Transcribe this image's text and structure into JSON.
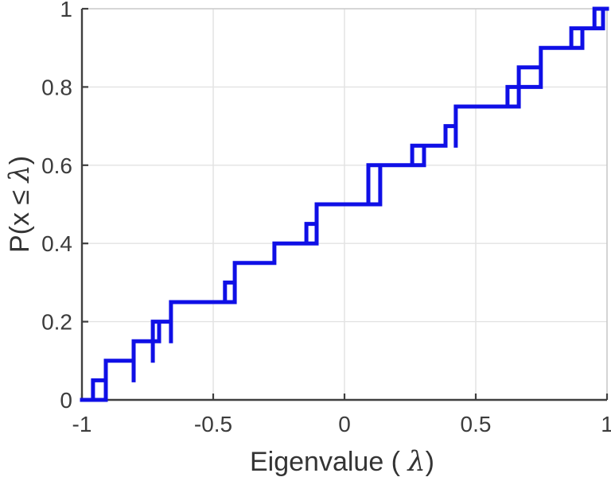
{
  "figure": {
    "background": "#ffffff",
    "kind": "MATLAB-style empirical CDF plot"
  },
  "chart_data": {
    "type": "step",
    "subtype": "ecdf-stairs",
    "title": "",
    "xlabel": {
      "pre": "Eigenvalue ( ",
      "sym": "λ",
      "post": ")"
    },
    "ylabel": {
      "pre": "P(x ",
      "mid": "≤ ",
      "sym": "λ",
      "post": ")"
    },
    "xlim": [
      -1,
      1
    ],
    "ylim": [
      0,
      1
    ],
    "xticks": {
      "values": [
        -1,
        -0.5,
        0,
        0.5,
        1
      ],
      "labels": [
        "-1",
        "-0.5",
        "0",
        "0.5",
        "1"
      ]
    },
    "yticks": {
      "values": [
        0,
        0.2,
        0.4,
        0.6,
        0.8,
        1
      ],
      "labels": [
        "0",
        "0.2",
        "0.4",
        "0.6",
        "0.8",
        "1"
      ]
    },
    "grid": true,
    "legend": null,
    "line_color": "#0f0fe6",
    "line_width": 5,
    "axis_color": "#3f3f3f",
    "minor_border_color": "#c9c9c9",
    "grid_color": "#e2e2e2",
    "tick_length": 8,
    "n_points": 20,
    "step_size": 0.05,
    "eigenvalues_approx": [
      -0.93,
      -0.86,
      -0.77,
      -0.7,
      -0.66,
      -0.44,
      -0.42,
      -0.27,
      -0.13,
      -0.11,
      0.11,
      0.11,
      0.28,
      0.4,
      0.42,
      0.64,
      0.71,
      0.75,
      0.89,
      0.97
    ],
    "steps": {
      "horizontals": [
        {
          "y": 0.0,
          "x1": -1.0,
          "x2": -0.909
        },
        {
          "y": 0.05,
          "x1": -0.958,
          "x2": -0.909
        },
        {
          "y": 0.1,
          "x1": -0.909,
          "x2": -0.803
        },
        {
          "y": 0.15,
          "x1": -0.803,
          "x2": -0.706
        },
        {
          "y": 0.2,
          "x1": -0.73,
          "x2": -0.661
        },
        {
          "y": 0.25,
          "x1": -0.661,
          "x2": -0.418
        },
        {
          "y": 0.3,
          "x1": -0.455,
          "x2": -0.418
        },
        {
          "y": 0.35,
          "x1": -0.418,
          "x2": -0.267
        },
        {
          "y": 0.4,
          "x1": -0.267,
          "x2": -0.106
        },
        {
          "y": 0.45,
          "x1": -0.145,
          "x2": -0.106
        },
        {
          "y": 0.5,
          "x1": -0.106,
          "x2": 0.136
        },
        {
          "y": 0.6,
          "x1": 0.091,
          "x2": 0.303
        },
        {
          "y": 0.65,
          "x1": 0.258,
          "x2": 0.385
        },
        {
          "y": 0.7,
          "x1": 0.385,
          "x2": 0.424
        },
        {
          "y": 0.75,
          "x1": 0.424,
          "x2": 0.664
        },
        {
          "y": 0.8,
          "x1": 0.621,
          "x2": 0.748
        },
        {
          "y": 0.85,
          "x1": 0.664,
          "x2": 0.748
        },
        {
          "y": 0.9,
          "x1": 0.748,
          "x2": 0.906
        },
        {
          "y": 0.95,
          "x1": 0.864,
          "x2": 0.985
        },
        {
          "y": 1.0,
          "x1": 0.952,
          "x2": 1.0
        }
      ],
      "verticals": [
        {
          "x": -0.958,
          "y1": 0.0,
          "y2": 0.05
        },
        {
          "x": -0.909,
          "y1": 0.0,
          "y2": 0.1
        },
        {
          "x": -0.803,
          "y1": 0.05,
          "y2": 0.15
        },
        {
          "x": -0.73,
          "y1": 0.1,
          "y2": 0.2
        },
        {
          "x": -0.706,
          "y1": 0.15,
          "y2": 0.2
        },
        {
          "x": -0.661,
          "y1": 0.15,
          "y2": 0.25
        },
        {
          "x": -0.455,
          "y1": 0.25,
          "y2": 0.3
        },
        {
          "x": -0.418,
          "y1": 0.25,
          "y2": 0.35
        },
        {
          "x": -0.267,
          "y1": 0.35,
          "y2": 0.4
        },
        {
          "x": -0.145,
          "y1": 0.4,
          "y2": 0.45
        },
        {
          "x": -0.106,
          "y1": 0.4,
          "y2": 0.5
        },
        {
          "x": 0.091,
          "y1": 0.5,
          "y2": 0.6
        },
        {
          "x": 0.136,
          "y1": 0.5,
          "y2": 0.6
        },
        {
          "x": 0.258,
          "y1": 0.6,
          "y2": 0.65
        },
        {
          "x": 0.303,
          "y1": 0.6,
          "y2": 0.65
        },
        {
          "x": 0.385,
          "y1": 0.65,
          "y2": 0.7
        },
        {
          "x": 0.424,
          "y1": 0.65,
          "y2": 0.75
        },
        {
          "x": 0.621,
          "y1": 0.75,
          "y2": 0.8
        },
        {
          "x": 0.664,
          "y1": 0.75,
          "y2": 0.85
        },
        {
          "x": 0.748,
          "y1": 0.8,
          "y2": 0.9
        },
        {
          "x": 0.864,
          "y1": 0.9,
          "y2": 0.95
        },
        {
          "x": 0.906,
          "y1": 0.9,
          "y2": 0.95
        },
        {
          "x": 0.952,
          "y1": 0.95,
          "y2": 1.0
        },
        {
          "x": 0.985,
          "y1": 0.95,
          "y2": 1.0
        }
      ]
    }
  }
}
